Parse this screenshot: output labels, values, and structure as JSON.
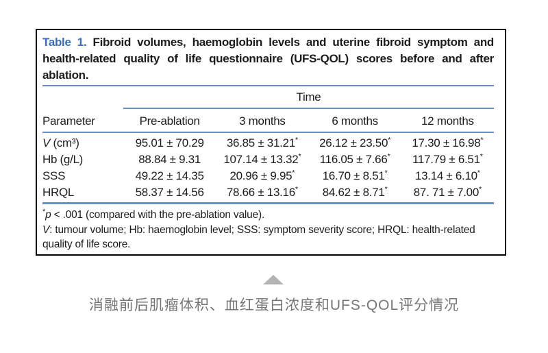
{
  "colors": {
    "rule_blue": "#6b90bf",
    "table_label_blue": "#3c6db4",
    "text_dark": "#1c1c1c",
    "zh_caption_gray": "#767676",
    "triangle_gray": "#b4b4b4",
    "box_border": "#000000",
    "background": "#ffffff"
  },
  "table": {
    "label": "Table 1.",
    "title": "Fibroid volumes, haemoglobin levels and uterine fibroid symptom and health-related quality of life questionnaire (UFS-QOL) scores before and after ablation.",
    "time_header": "Time",
    "columns": [
      "Parameter",
      "Pre-ablation",
      "3 months",
      "6 months",
      "12 months"
    ],
    "rows": [
      {
        "param_italic": "V",
        "param_text": " (cm³)",
        "values": [
          "95.01 ± 70.29",
          "36.85 ± 31.21*",
          "26.12 ± 23.50*",
          "17.30 ± 16.98*"
        ]
      },
      {
        "param_italic": "",
        "param_text": "Hb (g/L)",
        "values": [
          "88.84 ± 9.31",
          "107.14 ± 13.32*",
          "116.05 ± 7.66*",
          "117.79 ± 6.51*"
        ]
      },
      {
        "param_italic": "",
        "param_text": "SSS",
        "values": [
          "49.22 ± 14.35",
          "20.96 ± 9.95*",
          "16.70 ± 8.51*",
          "13.14 ± 6.10*"
        ]
      },
      {
        "param_italic": "",
        "param_text": "HRQL",
        "values": [
          "58.37 ± 14.56",
          "78.66 ± 13.16*",
          "84.62 ± 8.71*",
          "87. 71 ± 7.00*"
        ]
      }
    ],
    "footnotes": {
      "line1_star": "*",
      "line1_p": "p",
      "line1_rest": " < .001 (compared with the pre-ablation value).",
      "line2_v": "V",
      "line2_rest": ": tumour volume; Hb: haemoglobin level; SSS: symptom severity score; HRQL: health-related quality of life score."
    }
  },
  "triangle_icon": "collapse-arrow-up",
  "caption_zh": "消融前后肌瘤体积、血红蛋白浓度和UFS-QOL评分情况"
}
